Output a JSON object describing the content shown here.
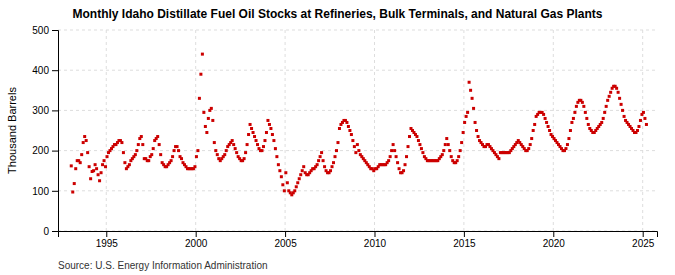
{
  "chart_data": {
    "type": "scatter",
    "title": "Monthly Idaho Distillate Fuel Oil Stocks at Refineries, Bulk Terminals, and Natural Gas Plants",
    "ylabel": "Thousand Barrels",
    "source": "Source: U.S. Energy Information Administration",
    "color": "#cc0000",
    "marker": "square",
    "grid": true,
    "xlim": [
      1992.3,
      2025.8
    ],
    "xticks": [
      1995,
      2000,
      2005,
      2010,
      2015,
      2020,
      2025
    ],
    "ylim": [
      0,
      500
    ],
    "yticks": [
      0,
      100,
      200,
      300,
      400,
      500
    ],
    "x": [
      1993.0416666666667,
      1993.125,
      1993.2083333333333,
      1993.2916666666667,
      1993.375,
      1993.4583333333333,
      1993.5416666666667,
      1993.625,
      1993.7083333333333,
      1993.7916666666667,
      1993.875,
      1993.9583333333333,
      1994.0416666666667,
      1994.125,
      1994.2083333333333,
      1994.2916666666667,
      1994.375,
      1994.4583333333333,
      1994.5416666666667,
      1994.625,
      1994.7083333333333,
      1994.7916666666667,
      1994.875,
      1994.9583333333333,
      1995.0416666666667,
      1995.125,
      1995.2083333333333,
      1995.2916666666667,
      1995.375,
      1995.4583333333333,
      1995.5416666666667,
      1995.625,
      1995.7083333333333,
      1995.7916666666667,
      1995.875,
      1995.9583333333333,
      1996.0416666666667,
      1996.125,
      1996.2083333333333,
      1996.2916666666667,
      1996.375,
      1996.4583333333333,
      1996.5416666666667,
      1996.625,
      1996.7083333333333,
      1996.7916666666667,
      1996.875,
      1996.9583333333333,
      1997.0416666666667,
      1997.125,
      1997.2083333333333,
      1997.2916666666667,
      1997.375,
      1997.4583333333333,
      1997.5416666666667,
      1997.625,
      1997.7083333333333,
      1997.7916666666667,
      1997.875,
      1997.9583333333333,
      1998.0416666666667,
      1998.125,
      1998.2083333333333,
      1998.2916666666667,
      1998.375,
      1998.4583333333333,
      1998.5416666666667,
      1998.625,
      1998.7083333333333,
      1998.7916666666667,
      1998.875,
      1998.9583333333333,
      1999.0416666666667,
      1999.125,
      1999.2083333333333,
      1999.2916666666667,
      1999.375,
      1999.4583333333333,
      1999.5416666666667,
      1999.625,
      1999.7083333333333,
      1999.7916666666667,
      1999.875,
      1999.9583333333333,
      2000.0416666666667,
      2000.125,
      2000.2083333333333,
      2000.2916666666667,
      2000.375,
      2000.4583333333333,
      2000.5416666666667,
      2000.625,
      2000.7083333333333,
      2000.7916666666667,
      2000.875,
      2000.9583333333333,
      2001.0416666666667,
      2001.125,
      2001.2083333333333,
      2001.2916666666667,
      2001.375,
      2001.4583333333333,
      2001.5416666666667,
      2001.625,
      2001.7083333333333,
      2001.7916666666667,
      2001.875,
      2001.9583333333333,
      2002.0416666666667,
      2002.125,
      2002.2083333333333,
      2002.2916666666667,
      2002.375,
      2002.4583333333333,
      2002.5416666666667,
      2002.625,
      2002.7083333333333,
      2002.7916666666667,
      2002.875,
      2002.9583333333333,
      2003.0416666666667,
      2003.125,
      2003.2083333333333,
      2003.2916666666667,
      2003.375,
      2003.4583333333333,
      2003.5416666666667,
      2003.625,
      2003.7083333333333,
      2003.7916666666667,
      2003.875,
      2003.9583333333333,
      2004.0416666666667,
      2004.125,
      2004.2083333333333,
      2004.2916666666667,
      2004.375,
      2004.4583333333333,
      2004.5416666666667,
      2004.625,
      2004.7083333333333,
      2004.7916666666667,
      2004.875,
      2004.9583333333333,
      2005.0416666666667,
      2005.125,
      2005.2083333333333,
      2005.2916666666667,
      2005.375,
      2005.4583333333333,
      2005.5416666666667,
      2005.625,
      2005.7083333333333,
      2005.7916666666667,
      2005.875,
      2005.9583333333333,
      2006.0416666666667,
      2006.125,
      2006.2083333333333,
      2006.2916666666667,
      2006.375,
      2006.4583333333333,
      2006.5416666666667,
      2006.625,
      2006.7083333333333,
      2006.7916666666667,
      2006.875,
      2006.9583333333333,
      2007.0416666666667,
      2007.125,
      2007.2083333333333,
      2007.2916666666667,
      2007.375,
      2007.4583333333333,
      2007.5416666666667,
      2007.625,
      2007.7083333333333,
      2007.7916666666667,
      2007.875,
      2007.9583333333333,
      2008.0416666666667,
      2008.125,
      2008.2083333333333,
      2008.2916666666667,
      2008.375,
      2008.4583333333333,
      2008.5416666666667,
      2008.625,
      2008.7083333333333,
      2008.7916666666667,
      2008.875,
      2008.9583333333333,
      2009.0416666666667,
      2009.125,
      2009.2083333333333,
      2009.2916666666667,
      2009.375,
      2009.4583333333333,
      2009.5416666666667,
      2009.625,
      2009.7083333333333,
      2009.7916666666667,
      2009.875,
      2009.9583333333333,
      2010.0416666666667,
      2010.125,
      2010.2083333333333,
      2010.2916666666667,
      2010.375,
      2010.4583333333333,
      2010.5416666666667,
      2010.625,
      2010.7083333333333,
      2010.7916666666667,
      2010.875,
      2010.9583333333333,
      2011.0416666666667,
      2011.125,
      2011.2083333333333,
      2011.2916666666667,
      2011.375,
      2011.4583333333333,
      2011.5416666666667,
      2011.625,
      2011.7083333333333,
      2011.7916666666667,
      2011.875,
      2011.9583333333333,
      2012.0416666666667,
      2012.125,
      2012.2083333333333,
      2012.2916666666667,
      2012.375,
      2012.4583333333333,
      2012.5416666666667,
      2012.625,
      2012.7083333333333,
      2012.7916666666667,
      2012.875,
      2012.9583333333333,
      2013.0416666666667,
      2013.125,
      2013.2083333333333,
      2013.2916666666667,
      2013.375,
      2013.4583333333333,
      2013.5416666666667,
      2013.625,
      2013.7083333333333,
      2013.7916666666667,
      2013.875,
      2013.9583333333333,
      2014.0416666666667,
      2014.125,
      2014.2083333333333,
      2014.2916666666667,
      2014.375,
      2014.4583333333333,
      2014.5416666666667,
      2014.625,
      2014.7083333333333,
      2014.7916666666667,
      2014.875,
      2014.9583333333333,
      2015.0416666666667,
      2015.125,
      2015.2083333333333,
      2015.2916666666667,
      2015.375,
      2015.4583333333333,
      2015.5416666666667,
      2015.625,
      2015.7083333333333,
      2015.7916666666667,
      2015.875,
      2015.9583333333333,
      2016.0416666666667,
      2016.125,
      2016.2083333333333,
      2016.2916666666667,
      2016.375,
      2016.4583333333333,
      2016.5416666666667,
      2016.625,
      2016.7083333333333,
      2016.7916666666667,
      2016.875,
      2016.9583333333333,
      2017.0416666666667,
      2017.125,
      2017.2083333333333,
      2017.2916666666667,
      2017.375,
      2017.4583333333333,
      2017.5416666666667,
      2017.625,
      2017.7083333333333,
      2017.7916666666667,
      2017.875,
      2017.9583333333333,
      2018.0416666666667,
      2018.125,
      2018.2083333333333,
      2018.2916666666667,
      2018.375,
      2018.4583333333333,
      2018.5416666666667,
      2018.625,
      2018.7083333333333,
      2018.7916666666667,
      2018.875,
      2018.9583333333333,
      2019.0416666666667,
      2019.125,
      2019.2083333333333,
      2019.2916666666667,
      2019.375,
      2019.4583333333333,
      2019.5416666666667,
      2019.625,
      2019.7083333333333,
      2019.7916666666667,
      2019.875,
      2019.9583333333333,
      2020.0416666666667,
      2020.125,
      2020.2083333333333,
      2020.2916666666667,
      2020.375,
      2020.4583333333333,
      2020.5416666666667,
      2020.625,
      2020.7083333333333,
      2020.7916666666667,
      2020.875,
      2020.9583333333333,
      2021.0416666666667,
      2021.125,
      2021.2083333333333,
      2021.2916666666667,
      2021.375,
      2021.4583333333333,
      2021.5416666666667,
      2021.625,
      2021.7083333333333,
      2021.7916666666667,
      2021.875,
      2021.9583333333333,
      2022.0416666666667,
      2022.125,
      2022.2083333333333,
      2022.2916666666667,
      2022.375,
      2022.4583333333333,
      2022.5416666666667,
      2022.625,
      2022.7083333333333,
      2022.7916666666667,
      2022.875,
      2022.9583333333333,
      2023.0416666666667,
      2023.125,
      2023.2083333333333,
      2023.2916666666667,
      2023.375,
      2023.4583333333333,
      2023.5416666666667,
      2023.625,
      2023.7083333333333,
      2023.7916666666667,
      2023.875,
      2023.9583333333333,
      2024.0416666666667,
      2024.125,
      2024.2083333333333,
      2024.2916666666667,
      2024.375,
      2024.4583333333333,
      2024.5416666666667,
      2024.625,
      2024.7083333333333,
      2024.7916666666667,
      2024.875,
      2024.9583333333333,
      2025.0416666666667,
      2025.125,
      2025.2083333333333
    ],
    "values": [
      162,
      97,
      118,
      155,
      175,
      175,
      170,
      190,
      220,
      235,
      225,
      195,
      160,
      130,
      148,
      150,
      165,
      155,
      140,
      125,
      145,
      165,
      175,
      160,
      185,
      195,
      200,
      205,
      210,
      215,
      215,
      220,
      225,
      225,
      220,
      195,
      170,
      155,
      160,
      165,
      175,
      180,
      185,
      190,
      200,
      215,
      230,
      235,
      215,
      180,
      180,
      175,
      175,
      185,
      190,
      205,
      225,
      230,
      235,
      215,
      190,
      170,
      165,
      160,
      160,
      165,
      170,
      175,
      185,
      200,
      210,
      210,
      200,
      185,
      180,
      170,
      165,
      160,
      155,
      155,
      155,
      155,
      155,
      160,
      185,
      200,
      330,
      390,
      440,
      295,
      260,
      245,
      280,
      300,
      305,
      275,
      220,
      200,
      190,
      180,
      175,
      180,
      185,
      190,
      200,
      210,
      215,
      220,
      225,
      215,
      205,
      195,
      185,
      180,
      175,
      175,
      180,
      195,
      215,
      240,
      265,
      255,
      245,
      235,
      225,
      215,
      205,
      200,
      200,
      210,
      225,
      245,
      275,
      265,
      255,
      240,
      225,
      205,
      185,
      165,
      150,
      135,
      115,
      100,
      145,
      120,
      100,
      95,
      90,
      95,
      100,
      110,
      120,
      130,
      140,
      150,
      160,
      145,
      140,
      140,
      145,
      150,
      155,
      155,
      160,
      165,
      175,
      185,
      195,
      175,
      160,
      150,
      145,
      145,
      150,
      160,
      170,
      185,
      200,
      220,
      255,
      265,
      270,
      275,
      275,
      270,
      260,
      250,
      240,
      225,
      210,
      195,
      215,
      200,
      190,
      185,
      180,
      175,
      170,
      165,
      160,
      155,
      155,
      150,
      155,
      155,
      160,
      165,
      165,
      165,
      165,
      165,
      170,
      175,
      185,
      200,
      215,
      200,
      185,
      170,
      155,
      145,
      145,
      150,
      165,
      185,
      210,
      235,
      255,
      250,
      245,
      240,
      235,
      225,
      215,
      205,
      195,
      185,
      180,
      175,
      175,
      175,
      175,
      175,
      175,
      175,
      175,
      180,
      185,
      190,
      200,
      215,
      230,
      215,
      200,
      185,
      175,
      170,
      170,
      175,
      185,
      200,
      220,
      245,
      270,
      285,
      295,
      370,
      350,
      330,
      305,
      270,
      250,
      235,
      225,
      220,
      215,
      210,
      210,
      215,
      215,
      210,
      205,
      200,
      195,
      190,
      185,
      180,
      195,
      195,
      195,
      195,
      195,
      195,
      195,
      200,
      205,
      210,
      215,
      220,
      225,
      220,
      215,
      210,
      205,
      200,
      200,
      205,
      215,
      230,
      250,
      265,
      285,
      290,
      295,
      295,
      295,
      290,
      280,
      270,
      260,
      250,
      240,
      235,
      230,
      225,
      220,
      215,
      210,
      205,
      200,
      200,
      205,
      215,
      230,
      250,
      270,
      280,
      295,
      310,
      320,
      325,
      325,
      320,
      310,
      295,
      280,
      265,
      255,
      250,
      245,
      245,
      250,
      255,
      260,
      265,
      270,
      280,
      295,
      310,
      325,
      335,
      345,
      355,
      360,
      360,
      355,
      345,
      330,
      315,
      300,
      285,
      275,
      270,
      265,
      260,
      255,
      250,
      245,
      245,
      250,
      260,
      275,
      290,
      295,
      280,
      265
    ]
  }
}
